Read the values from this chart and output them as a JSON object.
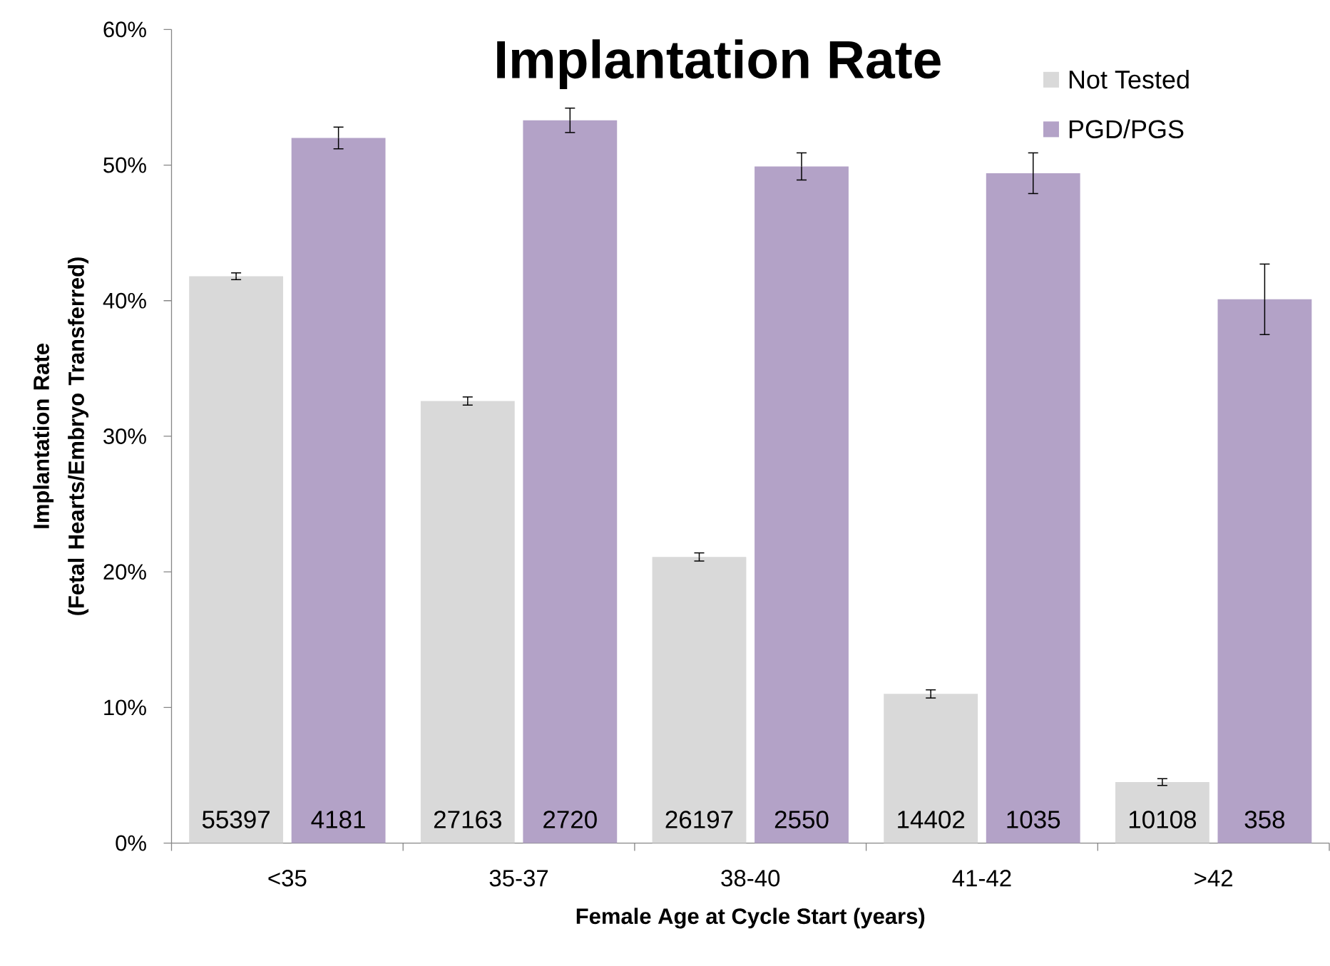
{
  "chart_data": {
    "type": "bar",
    "title": "Implantation Rate",
    "xlabel": "Female Age at Cycle Start (years)",
    "ylabel": "Implantation Rate (Fetal Hearts/Embryo Transferred)",
    "categories": [
      "<35",
      "35-37",
      "38-40",
      "41-42",
      ">42"
    ],
    "series": [
      {
        "name": "Not Tested",
        "color": "#d9d9d9",
        "values": [
          41.8,
          32.6,
          21.1,
          11.0,
          4.5
        ],
        "errors": [
          0.25,
          0.3,
          0.3,
          0.3,
          0.25
        ]
      },
      {
        "name": "PGD/PGS",
        "color": "#b3a2c7",
        "values": [
          52.0,
          53.3,
          49.9,
          49.4,
          40.1
        ],
        "errors": [
          0.8,
          0.9,
          1.0,
          1.5,
          2.6
        ]
      }
    ],
    "annotations": [
      "55397",
      "4181",
      "27163",
      "2720",
      "26197",
      "2550",
      "14402",
      "1035",
      "10108",
      "358"
    ],
    "ylim": [
      0,
      60
    ],
    "yticks": [
      {
        "value": 0,
        "label": "0%"
      },
      {
        "value": 10,
        "label": "10%"
      },
      {
        "value": 20,
        "label": "20%"
      },
      {
        "value": 30,
        "label": "30%"
      },
      {
        "value": 40,
        "label": "40%"
      },
      {
        "value": 50,
        "label": "50%"
      },
      {
        "value": 60,
        "label": "60%"
      }
    ],
    "legend": "top right"
  }
}
